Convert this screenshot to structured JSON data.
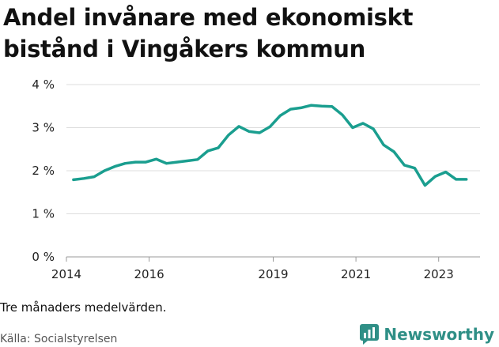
{
  "title": "Andel invånare med ekonomiskt bistånd i Vingåkers kommun",
  "note": "Tre månaders medelvärden.",
  "source": "Källa: Socialstyrelsen",
  "brand": {
    "name": "Newsworthy",
    "color": "#2f8f86"
  },
  "chart_data": {
    "type": "line",
    "title": "Andel invånare med ekonomiskt bistånd i Vingåkers kommun",
    "xlabel": "",
    "ylabel": "",
    "ylim": [
      0,
      4
    ],
    "yticks": [
      0,
      1,
      2,
      3,
      4
    ],
    "ytick_labels": [
      "0 %",
      "1 %",
      "2 %",
      "3 %",
      "4 %"
    ],
    "xlim": [
      2014.0,
      2024.0
    ],
    "xticks": [
      2014,
      2016,
      2019,
      2021,
      2023
    ],
    "xtick_labels": [
      "2014",
      "2016",
      "2019",
      "2021",
      "2023"
    ],
    "grid": true,
    "color": "#1a9e8f",
    "series": [
      {
        "x": [
          2014.17,
          2014.42,
          2014.67,
          2014.92,
          2015.17,
          2015.42,
          2015.67,
          2015.92,
          2016.17,
          2016.42,
          2016.67,
          2016.92,
          2017.17,
          2017.42,
          2017.67,
          2017.92,
          2018.17,
          2018.42,
          2018.67,
          2018.92,
          2019.17,
          2019.42,
          2019.67,
          2019.92,
          2020.17,
          2020.42,
          2020.67,
          2020.92,
          2021.17,
          2021.42,
          2021.67,
          2021.92,
          2022.17,
          2022.42,
          2022.67,
          2022.92,
          2023.17,
          2023.42,
          2023.67
        ],
        "values": [
          1.79,
          1.82,
          1.86,
          2.0,
          2.1,
          2.17,
          2.2,
          2.2,
          2.27,
          2.17,
          2.2,
          2.23,
          2.26,
          2.46,
          2.53,
          2.83,
          3.03,
          2.91,
          2.88,
          3.02,
          3.28,
          3.43,
          3.46,
          3.52,
          3.5,
          3.49,
          3.3,
          3.0,
          3.1,
          2.97,
          2.6,
          2.44,
          2.13,
          2.06,
          1.66,
          1.87,
          1.97,
          1.8,
          1.8
        ]
      }
    ]
  }
}
